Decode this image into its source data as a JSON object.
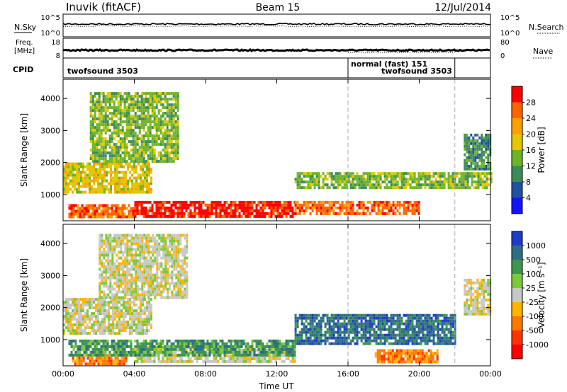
{
  "header": {
    "station": "Inuvik (fitACF)",
    "beam": "Beam 15",
    "date": "12/Jul/2014"
  },
  "panels": {
    "nsky": {
      "label": "N.Sky",
      "ticks_left": [
        "10^5",
        "10^0"
      ],
      "ticks_right": [
        "10^5",
        "10^0"
      ],
      "right_label": "N.Search"
    },
    "freq": {
      "label_top": "Freq.",
      "label_bottom": "[MHz]",
      "ticks_left": [
        "18",
        "8"
      ],
      "ticks_right": [
        "80",
        "0"
      ],
      "right_label": "Nave"
    },
    "cpid": {
      "label": "CPID",
      "segments": [
        "twofsound 3503",
        "normal (fast) 151",
        "twofsound 3503"
      ],
      "boundaries_hours": [
        16,
        22
      ]
    }
  },
  "chart_data": [
    {
      "type": "heatmap",
      "name": "power",
      "ylabel": "Slant Range [km]",
      "xlabel": "Time UT",
      "x_ticks": [
        "00:00",
        "04:00",
        "08:00",
        "12:00",
        "16:00",
        "20:00",
        "00:00"
      ],
      "y_ticks": [
        "1000",
        "2000",
        "3000",
        "4000"
      ],
      "xlim_hours": [
        0,
        24
      ],
      "ylim_km": [
        180,
        4600
      ],
      "colorbar_label": "Power [dB]",
      "colorbar_ticks": [
        "28",
        "24",
        "20",
        "16",
        "12",
        "8",
        "4"
      ],
      "colorbar_colors": [
        "#ff0000",
        "#ff6400",
        "#ffa000",
        "#e1c800",
        "#6eb428",
        "#3c8c5a",
        "#2050a0",
        "#1414ff"
      ],
      "regions": [
        {
          "t0": 4.0,
          "t1": 13.0,
          "r0": 300,
          "r1": 800,
          "level": 0
        },
        {
          "t0": 0.3,
          "t1": 4.0,
          "r0": 300,
          "r1": 700,
          "level": 1
        },
        {
          "t0": 13.0,
          "t1": 20.0,
          "r0": 400,
          "r1": 800,
          "level": 1
        },
        {
          "t0": 0.0,
          "t1": 5.0,
          "r0": 1100,
          "r1": 2000,
          "level": 3
        },
        {
          "t0": 13.0,
          "t1": 24.0,
          "r0": 1200,
          "r1": 1700,
          "level": 4
        },
        {
          "t0": 1.5,
          "t1": 6.5,
          "r0": 2000,
          "r1": 4200,
          "level": 4
        },
        {
          "t0": 22.5,
          "t1": 24.0,
          "r0": 1800,
          "r1": 2900,
          "level": 5
        }
      ]
    },
    {
      "type": "heatmap",
      "name": "velocity",
      "ylabel": "Slant Range [km]",
      "xlabel": "Time UT",
      "x_ticks": [
        "00:00",
        "04:00",
        "08:00",
        "12:00",
        "16:00",
        "20:00",
        "00:00"
      ],
      "y_ticks": [
        "1000",
        "2000",
        "3000",
        "4000"
      ],
      "xlim_hours": [
        0,
        24
      ],
      "ylim_km": [
        180,
        4600
      ],
      "colorbar_label": "Velocity [m s⁻¹]",
      "colorbar_ticks": [
        "1000",
        "500",
        "100",
        "25",
        "-25",
        "-100",
        "-500",
        "-1000"
      ],
      "colorbar_colors": [
        "#1e3cc8",
        "#2d6e82",
        "#3c9650",
        "#7dc83c",
        "#c8c8c8",
        "#ffb400",
        "#ff7800",
        "#ff3200",
        "#ff0000"
      ],
      "regions": [
        {
          "t0": 4.0,
          "t1": 13.0,
          "r0": 300,
          "r1": 800,
          "level": 4
        },
        {
          "t0": 0.5,
          "t1": 3.5,
          "r0": 250,
          "r1": 550,
          "level": 6
        },
        {
          "t0": 0.3,
          "t1": 13.0,
          "r0": 500,
          "r1": 1000,
          "level": 2
        },
        {
          "t0": 13.0,
          "t1": 22.0,
          "r0": 900,
          "r1": 1800,
          "level": 1
        },
        {
          "t0": 0.0,
          "t1": 5.0,
          "r0": 1200,
          "r1": 2300,
          "level": 4
        },
        {
          "t0": 2.0,
          "t1": 7.0,
          "r0": 2300,
          "r1": 4300,
          "level": 4
        },
        {
          "t0": 22.5,
          "t1": 24.0,
          "r0": 1800,
          "r1": 2900,
          "level": 4
        },
        {
          "t0": 17.5,
          "t1": 21.0,
          "r0": 300,
          "r1": 700,
          "level": 6
        }
      ]
    }
  ]
}
